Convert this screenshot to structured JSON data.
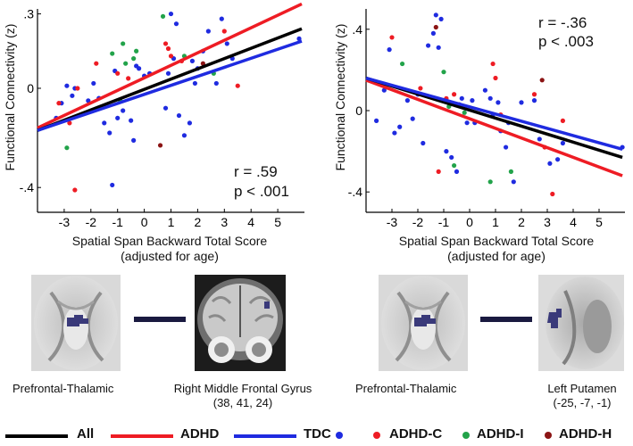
{
  "chart_data": [
    {
      "type": "scatter",
      "id": "left",
      "xlabel": "Spatial Span Backward Total Score",
      "xlabel2": "(adjusted for age)",
      "ylabel": "Functional Connectivity (z)",
      "xlim": [
        -4,
        6
      ],
      "ylim": [
        -0.5,
        0.32
      ],
      "xticks": [
        -3,
        -2,
        -1,
        0,
        1,
        2,
        3,
        4,
        5
      ],
      "yticks": [
        ".3",
        "0",
        "-.4"
      ],
      "ytick_values": [
        0.3,
        0,
        -0.4
      ],
      "stat_r": "r = .59",
      "stat_p": "p < .001",
      "lines": [
        {
          "group": "ADHD",
          "color": "#ee1c24",
          "x": [
            -4,
            5.9
          ],
          "y": [
            -0.16,
            0.34
          ]
        },
        {
          "group": "All",
          "color": "#000000",
          "x": [
            -4,
            5.9
          ],
          "y": [
            -0.17,
            0.24
          ]
        },
        {
          "group": "TDC",
          "color": "#1f2be0",
          "x": [
            -4,
            5.9
          ],
          "y": [
            -0.17,
            0.19
          ]
        }
      ],
      "points": {
        "TDC": [
          [
            -3.3,
            -0.12
          ],
          [
            -3.1,
            -0.06
          ],
          [
            -2.9,
            0.01
          ],
          [
            -2.7,
            -0.03
          ],
          [
            -2.6,
            0.0
          ],
          [
            -2.1,
            -0.05
          ],
          [
            -1.9,
            0.02
          ],
          [
            -1.7,
            -0.04
          ],
          [
            -1.5,
            -0.14
          ],
          [
            -1.3,
            -0.18
          ],
          [
            -1.2,
            -0.39
          ],
          [
            -1.1,
            0.07
          ],
          [
            -1.0,
            -0.12
          ],
          [
            -0.8,
            -0.09
          ],
          [
            -0.5,
            -0.13
          ],
          [
            -0.4,
            -0.21
          ],
          [
            -0.2,
            0.08
          ],
          [
            -0.3,
            0.09
          ],
          [
            0.0,
            0.05
          ],
          [
            0.2,
            0.06
          ],
          [
            0.8,
            -0.08
          ],
          [
            0.9,
            0.06
          ],
          [
            1.0,
            0.3
          ],
          [
            1.1,
            0.12
          ],
          [
            1.2,
            0.26
          ],
          [
            1.3,
            -0.11
          ],
          [
            1.5,
            -0.19
          ],
          [
            1.7,
            -0.14
          ],
          [
            1.8,
            0.11
          ],
          [
            1.9,
            0.02
          ],
          [
            2.0,
            0.08
          ],
          [
            2.2,
            0.15
          ],
          [
            2.4,
            0.23
          ],
          [
            2.7,
            0.02
          ],
          [
            2.9,
            0.28
          ],
          [
            3.1,
            0.18
          ],
          [
            3.3,
            0.12
          ],
          [
            5.8,
            0.2
          ]
        ],
        "ADHD-C": [
          [
            -3.2,
            -0.06
          ],
          [
            -2.8,
            -0.14
          ],
          [
            -2.6,
            -0.41
          ],
          [
            -2.5,
            0.0
          ],
          [
            -1.8,
            0.1
          ],
          [
            -1.0,
            0.06
          ],
          [
            -0.6,
            0.04
          ],
          [
            0.8,
            0.18
          ],
          [
            0.9,
            0.16
          ],
          [
            1.0,
            0.13
          ],
          [
            1.4,
            0.11
          ],
          [
            3.0,
            0.23
          ],
          [
            3.5,
            0.01
          ]
        ],
        "ADHD-I": [
          [
            -2.9,
            -0.24
          ],
          [
            -1.2,
            0.14
          ],
          [
            -0.8,
            0.18
          ],
          [
            -0.7,
            0.1
          ],
          [
            -0.4,
            0.12
          ],
          [
            -0.3,
            0.15
          ],
          [
            0.7,
            0.29
          ],
          [
            1.5,
            0.13
          ],
          [
            2.6,
            0.06
          ],
          [
            -0.9,
            -0.05
          ]
        ],
        "ADHD-H": [
          [
            0.6,
            -0.23
          ],
          [
            2.2,
            0.1
          ]
        ]
      }
    },
    {
      "type": "scatter",
      "id": "right",
      "xlabel": "Spatial Span Backward Total Score",
      "xlabel2": "(adjusted for age)",
      "ylabel": "Functional Connectivity (z)",
      "xlim": [
        -4,
        6
      ],
      "ylim": [
        -0.5,
        0.5
      ],
      "xticks": [
        -3,
        -2,
        -1,
        0,
        1,
        2,
        3,
        4,
        5
      ],
      "yticks": [
        ".4",
        "0",
        "-.4"
      ],
      "ytick_values": [
        0.4,
        0,
        -0.4
      ],
      "stat_r": "r = -.36",
      "stat_p": "p < .003",
      "lines": [
        {
          "group": "ADHD",
          "color": "#ee1c24",
          "x": [
            -4,
            5.9
          ],
          "y": [
            0.15,
            -0.32
          ]
        },
        {
          "group": "All",
          "color": "#000000",
          "x": [
            -4,
            5.9
          ],
          "y": [
            0.16,
            -0.23
          ]
        },
        {
          "group": "TDC",
          "color": "#1f2be0",
          "x": [
            -4,
            5.9
          ],
          "y": [
            0.16,
            -0.19
          ]
        }
      ],
      "points": {
        "TDC": [
          [
            -3.6,
            -0.05
          ],
          [
            -3.3,
            0.1
          ],
          [
            -3.1,
            0.3
          ],
          [
            -2.9,
            -0.11
          ],
          [
            -2.7,
            -0.08
          ],
          [
            -2.4,
            0.05
          ],
          [
            -2.2,
            -0.04
          ],
          [
            -2.0,
            0.08
          ],
          [
            -1.8,
            -0.16
          ],
          [
            -1.6,
            0.32
          ],
          [
            -1.4,
            0.38
          ],
          [
            -1.3,
            0.47
          ],
          [
            -1.2,
            0.31
          ],
          [
            -1.1,
            0.45
          ],
          [
            -0.9,
            -0.2
          ],
          [
            -0.7,
            -0.23
          ],
          [
            -0.5,
            -0.3
          ],
          [
            -0.4,
            0.03
          ],
          [
            -0.3,
            0.06
          ],
          [
            -0.1,
            -0.06
          ],
          [
            0.1,
            0.05
          ],
          [
            0.2,
            -0.06
          ],
          [
            0.6,
            0.1
          ],
          [
            0.8,
            0.06
          ],
          [
            0.9,
            -0.02
          ],
          [
            1.1,
            0.04
          ],
          [
            1.2,
            -0.1
          ],
          [
            1.4,
            -0.18
          ],
          [
            1.5,
            -0.06
          ],
          [
            1.7,
            -0.35
          ],
          [
            2.0,
            0.04
          ],
          [
            2.5,
            0.05
          ],
          [
            2.7,
            -0.14
          ],
          [
            3.1,
            -0.26
          ],
          [
            3.4,
            -0.24
          ],
          [
            3.6,
            -0.16
          ],
          [
            5.9,
            -0.18
          ]
        ],
        "ADHD-C": [
          [
            -3.0,
            0.36
          ],
          [
            -1.9,
            0.11
          ],
          [
            -1.2,
            -0.3
          ],
          [
            -0.9,
            0.06
          ],
          [
            -0.6,
            0.08
          ],
          [
            0.9,
            0.23
          ],
          [
            1.0,
            0.16
          ],
          [
            1.2,
            -0.02
          ],
          [
            2.5,
            0.08
          ],
          [
            2.9,
            -0.18
          ],
          [
            3.2,
            -0.41
          ],
          [
            3.6,
            -0.05
          ]
        ],
        "ADHD-I": [
          [
            -2.6,
            0.23
          ],
          [
            -1.0,
            0.19
          ],
          [
            -0.8,
            0.02
          ],
          [
            -0.6,
            -0.27
          ],
          [
            0.8,
            -0.35
          ],
          [
            1.6,
            -0.3
          ],
          [
            -0.2,
            -0.01
          ]
        ],
        "ADHD-H": [
          [
            -1.3,
            0.41
          ],
          [
            2.8,
            0.15
          ]
        ]
      }
    }
  ],
  "colors": {
    "All": "#000000",
    "ADHD": "#ee1c24",
    "TDC": "#1f2be0",
    "ADHD-C": "#ee1c24",
    "ADHD-I": "#22a34a",
    "ADHD-H": "#8b1414",
    "connector": "#1a1a40",
    "roi": "#3a3a7a"
  },
  "captions": {
    "left_a": "Prefrontal-Thalamic",
    "left_b_line1": "Right Middle Frontal Gyrus",
    "left_b_line2": "(38, 41, 24)",
    "right_a": "Prefrontal-Thalamic",
    "right_b_line1": "Left Putamen",
    "right_b_line2": "(-25, -7, -1)"
  },
  "legend": {
    "all": "All",
    "adhd": "ADHD",
    "tdc": "TDC",
    "adhd_c": "ADHD-C",
    "adhd_i": "ADHD-I",
    "adhd_h": "ADHD-H"
  }
}
